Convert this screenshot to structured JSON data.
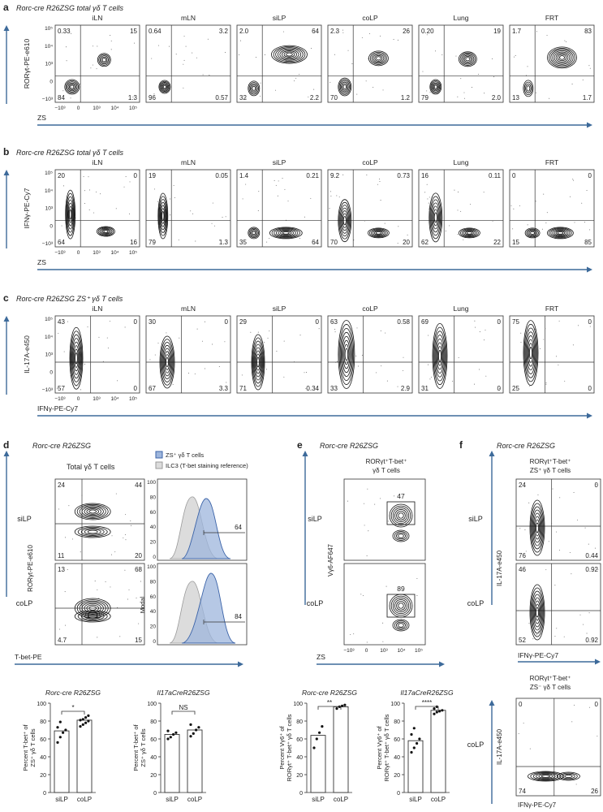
{
  "colors": {
    "axis_arrow": "#3d6a9a",
    "contour": "#111111",
    "zs_fill": "#9eb6dc",
    "zs_line": "#3b63a8",
    "ilc3_fill": "#dcdcdc",
    "ilc3_line": "#9a9a9a",
    "bar_edge": "#333333"
  },
  "tissues": [
    "iLN",
    "mLN",
    "siLP",
    "coLP",
    "Lung",
    "FRT"
  ],
  "tick_labels": {
    "top": "10⁵",
    "upper": "10⁴",
    "mid": "10³",
    "zero": "0",
    "neg": "−10³"
  },
  "x_ticks": [
    "−10³",
    "0",
    "10³",
    "10⁴",
    "10⁵"
  ],
  "panel_a": {
    "letter": "a",
    "title": "Rorc-cre R26ZSG total γδ T cells",
    "ylabel": "RORγt-PE-e610",
    "xlabel": "ZS",
    "quadrants": [
      [
        "0.33",
        "15",
        "84",
        "1.3"
      ],
      [
        "0.64",
        "3.2",
        "96",
        "0.57"
      ],
      [
        "2.0",
        "64",
        "32",
        "2.2"
      ],
      [
        "2.3",
        "26",
        "70",
        "1.2"
      ],
      [
        "0.20",
        "19",
        "79",
        "2.0"
      ],
      [
        "1.7",
        "83",
        "13",
        "1.7"
      ]
    ]
  },
  "panel_b": {
    "letter": "b",
    "title": "Rorc-cre R26ZSG total γδ T cells",
    "ylabel": "IFNγ-PE-Cy7",
    "xlabel": "ZS",
    "quadrants": [
      [
        "20",
        "0",
        "64",
        "16"
      ],
      [
        "19",
        "0.05",
        "79",
        "1.3"
      ],
      [
        "1.4",
        "0.21",
        "35",
        "64"
      ],
      [
        "9.2",
        "0.73",
        "70",
        "20"
      ],
      [
        "16",
        "0.11",
        "62",
        "22"
      ],
      [
        "0",
        "0",
        "15",
        "85"
      ]
    ]
  },
  "panel_c": {
    "letter": "c",
    "title": "Rorc-cre R26ZSG ZS⁺ γδ T cells",
    "ylabel": "IL-17A-e450",
    "xlabel": "IFNγ-PE-Cy7",
    "quadrants": [
      [
        "43",
        "0",
        "57",
        "0"
      ],
      [
        "30",
        "0",
        "67",
        "3.3"
      ],
      [
        "29",
        "0",
        "71",
        "0.34"
      ],
      [
        "63",
        "0.58",
        "33",
        "2.9"
      ],
      [
        "69",
        "0",
        "31",
        "0"
      ],
      [
        "75",
        "0",
        "25",
        "0"
      ]
    ]
  },
  "panel_d": {
    "letter": "d",
    "title": "Rorc-cre R26ZSG",
    "subtitle": "Total γδ T cells",
    "ylabel": "RORγt-PE-e610",
    "xlabel": "T-bet-PE",
    "rows": [
      "siLP",
      "coLP"
    ],
    "quadrants": [
      [
        "24",
        "44",
        "11",
        "20"
      ],
      [
        "13",
        "68",
        "4.7",
        "15"
      ]
    ],
    "legend": [
      "ZS⁺ γδ T cells",
      "ILC3 (T-bet staining reference)"
    ],
    "hist_ylabel": "Modal",
    "hist_ticks": [
      "100",
      "80",
      "60",
      "40",
      "20",
      "0"
    ],
    "gates": [
      "64",
      "84"
    ]
  },
  "panel_e": {
    "letter": "e",
    "title": "Rorc-cre R26ZSG",
    "subtitle": [
      "RORγt⁺T-bet⁺",
      "γδ T cells"
    ],
    "ylabel": "Vγ6-AF647",
    "xlabel": "ZS",
    "rows": [
      "siLP",
      "coLP"
    ],
    "gates": [
      "47",
      "89"
    ]
  },
  "panel_f": {
    "letter": "f",
    "title": "Rorc-cre R26ZSG",
    "subtitle": [
      "RORγt⁺T-bet⁺",
      "ZS⁺ γδ T cells"
    ],
    "ylabel": "IL-17A-e450",
    "xlabel": "IFNγ-PE-Cy7",
    "rows": [
      "siLP",
      "coLP"
    ],
    "quadrants": [
      [
        "24",
        "0",
        "76",
        "0.44"
      ],
      [
        "46",
        "0.92",
        "52",
        "0.92"
      ]
    ],
    "bottom": {
      "subtitle": [
        "RORγt⁺T-bet⁺",
        "ZS⁻ γδ T cells"
      ],
      "row": "coLP",
      "quadrants": [
        "0",
        "0",
        "74",
        "26"
      ]
    }
  },
  "bar_axis_ticks": [
    "100",
    "80",
    "60",
    "40",
    "20",
    "0"
  ],
  "bar_cats": [
    "siLP",
    "coLP"
  ],
  "chart_data": [
    {
      "type": "bar",
      "title": "Rorc-cre R26ZSG",
      "ylabel": "Percent T-bet⁺ of ZS⁺ γδ T cells",
      "categories": [
        "siLP",
        "coLP"
      ],
      "values": [
        69,
        81
      ],
      "ylim": [
        0,
        100
      ],
      "sig": "*",
      "points": [
        [
          56,
          62,
          67,
          70,
          73,
          79
        ],
        [
          74,
          76,
          78,
          80,
          81,
          82,
          84,
          86
        ]
      ]
    },
    {
      "type": "bar",
      "title": "Il17aCreR26ZSG",
      "ylabel": "Percent T-bet⁺ of ZS⁺ γδ T cells",
      "categories": [
        "siLP",
        "coLP"
      ],
      "values": [
        65,
        70
      ],
      "ylim": [
        0,
        100
      ],
      "sig": "NS",
      "points": [
        [
          60,
          62,
          65,
          67,
          69
        ],
        [
          63,
          66,
          70,
          73,
          76
        ]
      ]
    },
    {
      "type": "bar",
      "title": "Rorc-cre R26ZSG",
      "ylabel": "Percent Vγ6⁺ of RORγt⁺ T-bet⁺ γδ T cells",
      "categories": [
        "siLP",
        "coLP"
      ],
      "values": [
        64,
        96
      ],
      "ylim": [
        0,
        100
      ],
      "sig": "**",
      "points": [
        [
          50,
          60,
          67,
          74
        ],
        [
          94,
          96,
          97,
          98
        ]
      ]
    },
    {
      "type": "bar",
      "title": "Il17aCreR26ZSG",
      "ylabel": "Percent Vγ6⁺ of RORγt⁺ T-bet⁺ γδ T cells",
      "categories": [
        "siLP",
        "coLP"
      ],
      "values": [
        58,
        92
      ],
      "ylim": [
        0,
        100
      ],
      "sig": "****",
      "points": [
        [
          45,
          50,
          55,
          60,
          65,
          72
        ],
        [
          88,
          90,
          91,
          92,
          94,
          96
        ]
      ]
    }
  ]
}
